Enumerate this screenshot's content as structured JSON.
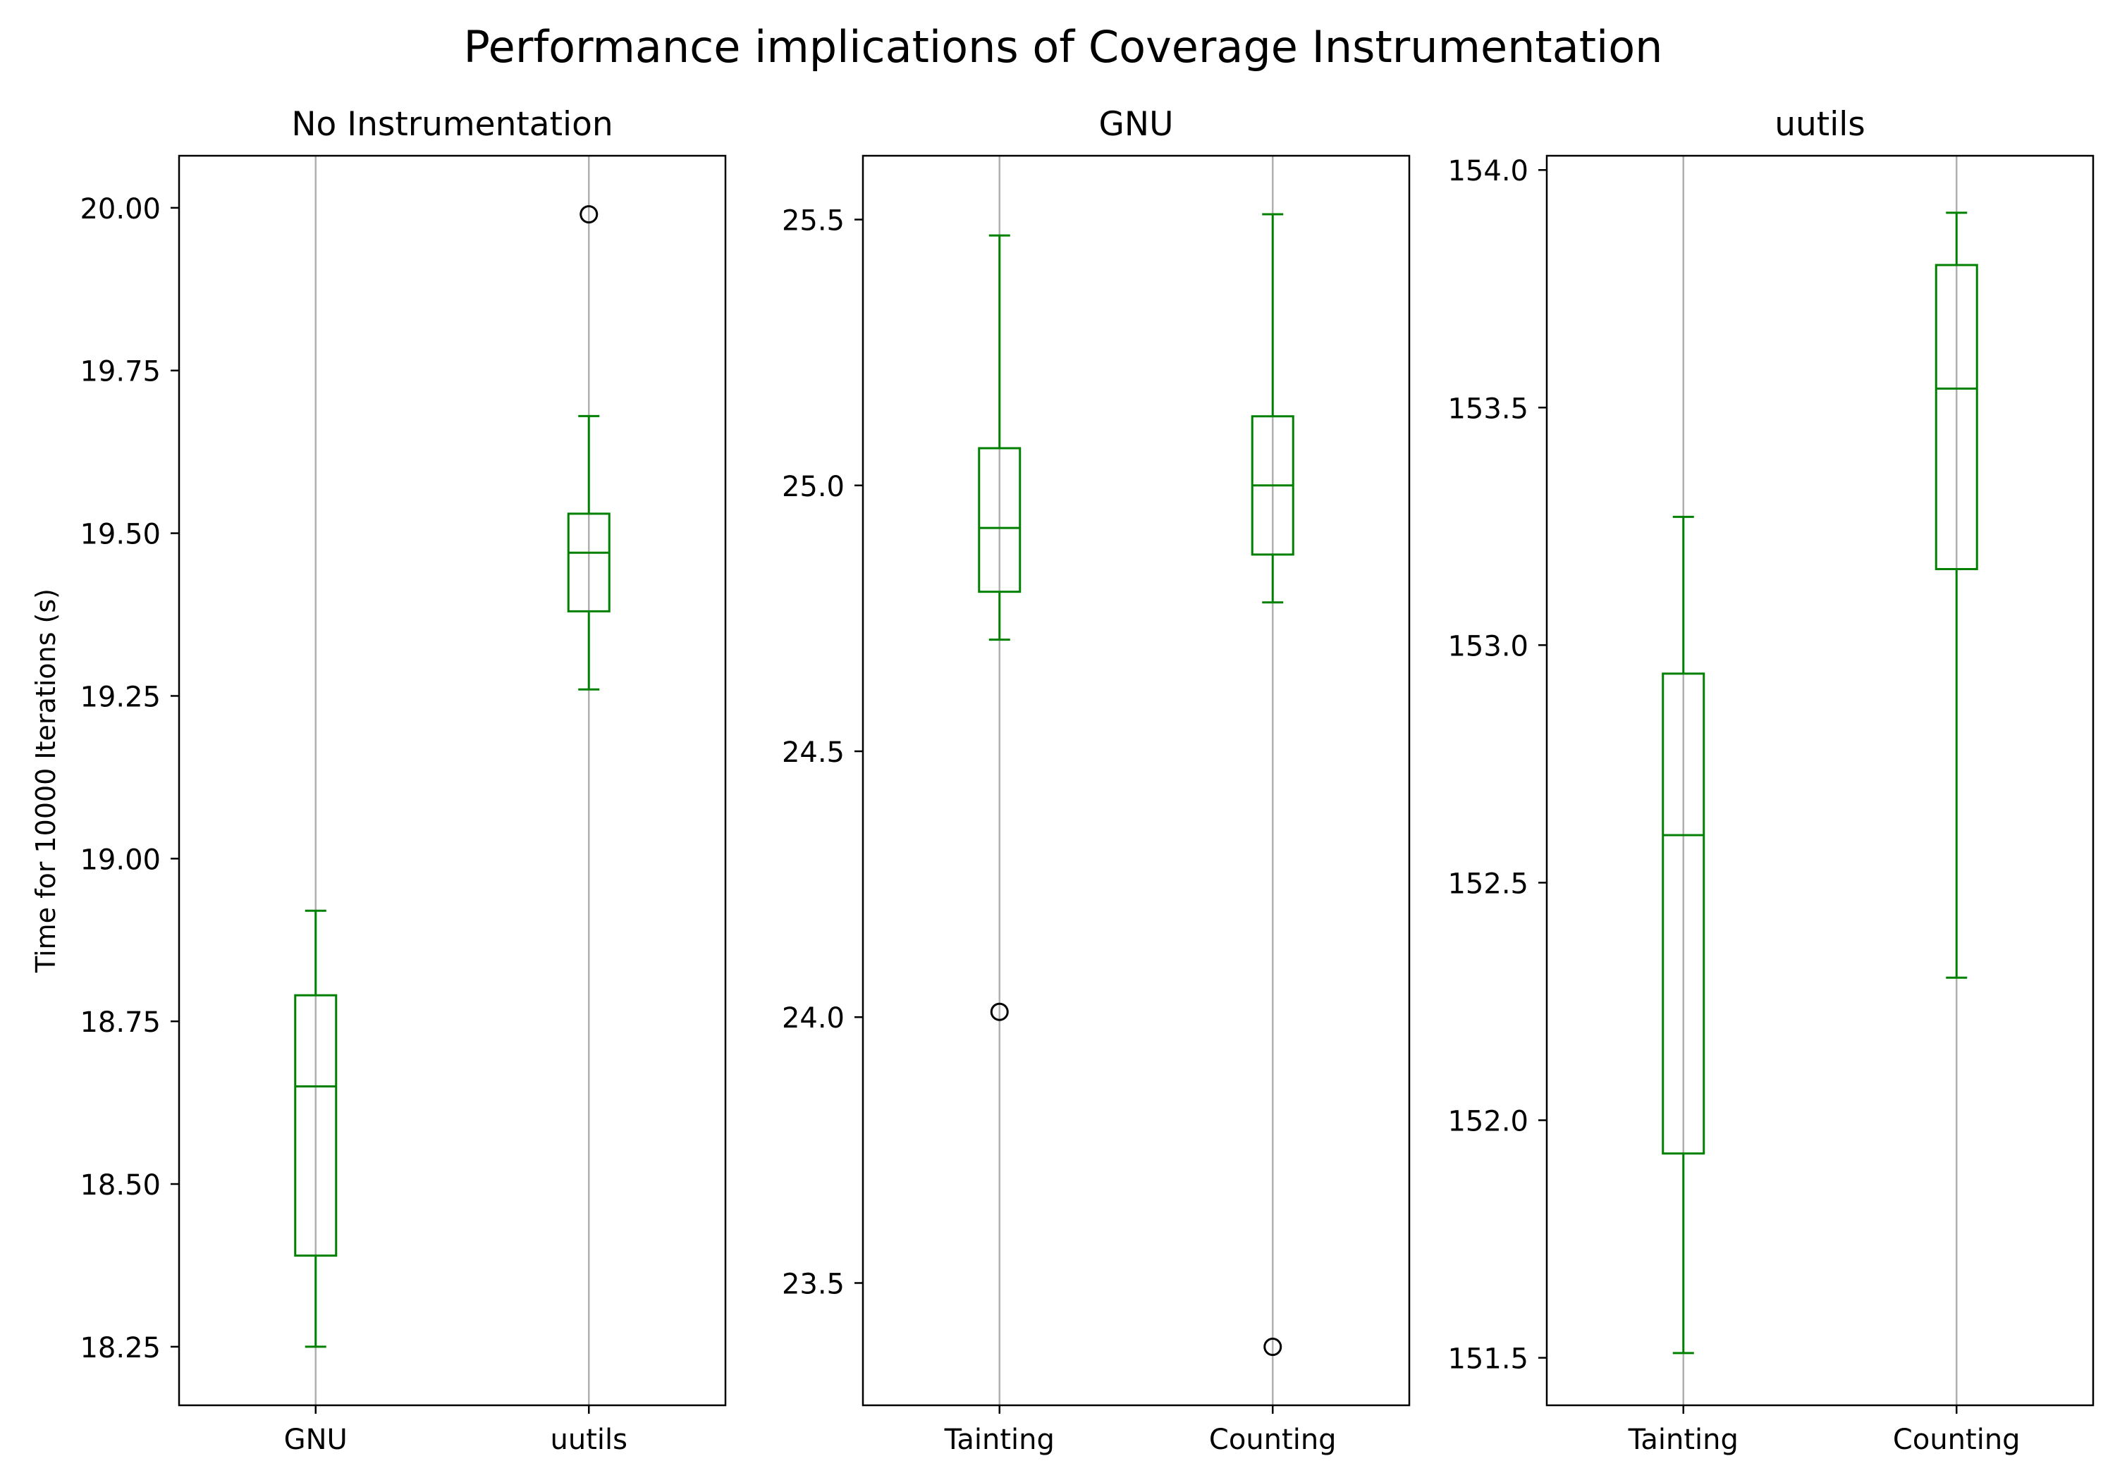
{
  "figure_title": "Performance implications of Coverage Instrumentation",
  "box_color": "#008000",
  "flier_color": "#000000",
  "grid_color": "#b0b0b0",
  "chart_data": [
    {
      "type": "box",
      "title": "No Instrumentation",
      "ylabel": "Time for 10000 Iterations (s)",
      "xlabel": "",
      "ylim": [
        18.16,
        20.08
      ],
      "yticks": [
        18.25,
        18.5,
        18.75,
        19.0,
        19.25,
        19.5,
        19.75,
        20.0
      ],
      "ytick_labels": [
        "18.25",
        "18.50",
        "18.75",
        "19.00",
        "19.25",
        "19.50",
        "19.75",
        "20.00"
      ],
      "categories": [
        "GNU",
        "uutils"
      ],
      "x_grid": true,
      "boxes": [
        {
          "whisker_low": 18.25,
          "q1": 18.39,
          "median": 18.65,
          "q3": 18.79,
          "whisker_high": 18.92,
          "fliers": []
        },
        {
          "whisker_low": 19.26,
          "q1": 19.38,
          "median": 19.47,
          "q3": 19.53,
          "whisker_high": 19.68,
          "fliers": [
            19.99
          ]
        }
      ]
    },
    {
      "type": "box",
      "title": "GNU",
      "xlabel": "",
      "ylim": [
        23.27,
        25.62
      ],
      "yticks": [
        23.5,
        24.0,
        24.5,
        25.0,
        25.5
      ],
      "ytick_labels": [
        "23.5",
        "24.0",
        "24.5",
        "25.0",
        "25.5"
      ],
      "categories": [
        "Tainting",
        "Counting"
      ],
      "x_grid": true,
      "boxes": [
        {
          "whisker_low": 24.71,
          "q1": 24.8,
          "median": 24.92,
          "q3": 25.07,
          "whisker_high": 25.47,
          "fliers": [
            24.01
          ]
        },
        {
          "whisker_low": 24.78,
          "q1": 24.87,
          "median": 25.0,
          "q3": 25.13,
          "whisker_high": 25.51,
          "fliers": [
            23.38
          ]
        }
      ]
    },
    {
      "type": "box",
      "title": "uutils",
      "xlabel": "",
      "ylim": [
        151.4,
        154.03
      ],
      "yticks": [
        151.5,
        152.0,
        152.5,
        153.0,
        153.5,
        154.0
      ],
      "ytick_labels": [
        "151.5",
        "152.0",
        "152.5",
        "153.0",
        "153.5",
        "154.0"
      ],
      "categories": [
        "Tainting",
        "Counting"
      ],
      "x_grid": true,
      "boxes": [
        {
          "whisker_low": 151.51,
          "q1": 151.93,
          "median": 152.6,
          "q3": 152.94,
          "whisker_high": 153.27,
          "fliers": []
        },
        {
          "whisker_low": 152.3,
          "q1": 153.16,
          "median": 153.54,
          "q3": 153.8,
          "whisker_high": 153.91,
          "fliers": []
        }
      ]
    }
  ]
}
